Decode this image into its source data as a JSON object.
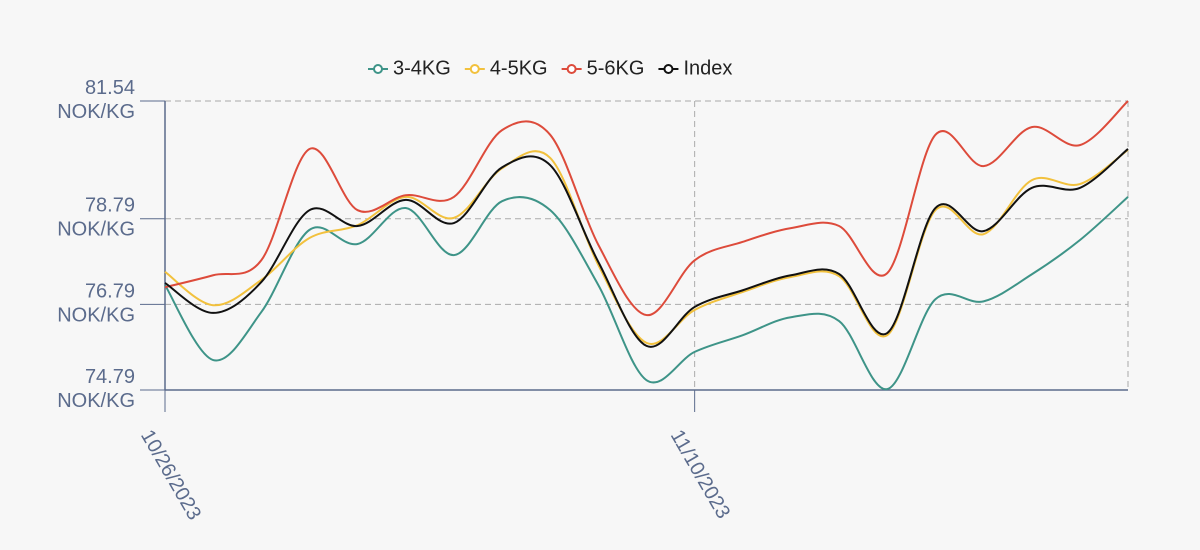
{
  "chart_data": {
    "type": "line",
    "categories": [
      "10/26/2023",
      null,
      null,
      null,
      null,
      null,
      null,
      null,
      null,
      null,
      null,
      "11/10/2023",
      null,
      null,
      null,
      null,
      null,
      null,
      null,
      null,
      null
    ],
    "series": [
      {
        "name": "3-4KG",
        "color": "#3e9488",
        "values": [
          77.24,
          75.49,
          76.61,
          78.53,
          78.2,
          79.04,
          77.94,
          79.2,
          78.99,
          77.24,
          75.02,
          75.68,
          76.07,
          76.49,
          76.4,
          74.81,
          76.91,
          76.86,
          77.49,
          78.29,
          79.3
        ]
      },
      {
        "name": "4-5KG",
        "color": "#f2c13d",
        "values": [
          77.55,
          76.77,
          77.36,
          78.34,
          78.64,
          79.3,
          78.81,
          79.97,
          80.21,
          77.71,
          75.89,
          76.66,
          77.08,
          77.43,
          77.45,
          76.07,
          78.99,
          78.43,
          79.69,
          79.6,
          80.4
        ]
      },
      {
        "name": "5-6KG",
        "color": "#dd4b3b",
        "values": [
          77.19,
          77.47,
          77.82,
          80.42,
          78.99,
          79.34,
          79.3,
          80.86,
          80.75,
          78.18,
          76.54,
          77.82,
          78.25,
          78.57,
          78.62,
          77.52,
          80.75,
          80.02,
          80.93,
          80.51,
          81.54
        ]
      },
      {
        "name": "Index",
        "color": "#111111",
        "values": [
          77.29,
          76.59,
          77.31,
          78.99,
          78.62,
          79.23,
          78.69,
          79.99,
          80.04,
          77.78,
          75.82,
          76.73,
          77.12,
          77.47,
          77.5,
          76.12,
          79.04,
          78.5,
          79.51,
          79.51,
          80.42
        ]
      }
    ],
    "ylim": [
      74.79,
      81.54
    ],
    "yticks": [
      {
        "value": 74.79,
        "label": "74.79\nNOK/KG"
      },
      {
        "value": 76.79,
        "label": "76.79\nNOK/KG"
      },
      {
        "value": 78.79,
        "label": "78.79\nNOK/KG"
      },
      {
        "value": 81.54,
        "label": "81.54\nNOK/KG"
      }
    ],
    "grid": true,
    "legend": "top"
  }
}
